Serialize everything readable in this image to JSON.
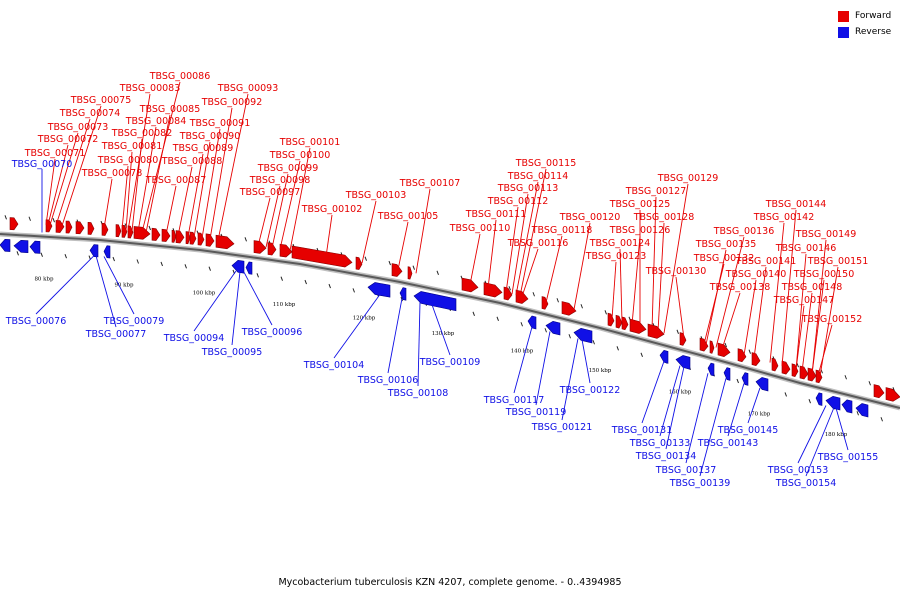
{
  "legend": {
    "forward_label": "Forward",
    "reverse_label": "Reverse",
    "forward_color": "#e60000",
    "reverse_color": "#1010e6"
  },
  "caption": "Mycobacterium tuberculosis KZN 4207, complete genome. - 0..4394985",
  "scale": [
    "80 kbp",
    "90 kbp",
    "100 kbp",
    "110 kbp",
    "120 kbp",
    "130 kbp",
    "140 kbp",
    "150 kbp",
    "160 kbp",
    "170 kbp",
    "180 kbp"
  ],
  "forward_labels": [
    "TBSG_00086",
    "TBSG_00083",
    "TBSG_00093",
    "TBSG_00075",
    "TBSG_00085",
    "TBSG_00092",
    "TBSG_00074",
    "TBSG_00084",
    "TBSG_00091",
    "TBSG_00073",
    "TBSG_00082",
    "TBSG_00090",
    "TBSG_00072",
    "TBSG_00081",
    "TBSG_00089",
    "TBSG_00101",
    "TBSG_00071",
    "TBSG_00080",
    "TBSG_00088",
    "TBSG_00100",
    "TBSG_00078",
    "TBSG_00099",
    "TBSG_00087",
    "TBSG_00098",
    "TBSG_00097",
    "TBSG_00102",
    "TBSG_00103",
    "TBSG_00107",
    "TBSG_00105",
    "TBSG_00115",
    "TBSG_00114",
    "TBSG_00113",
    "TBSG_00112",
    "TBSG_00111",
    "TBSG_00110",
    "TBSG_00120",
    "TBSG_00118",
    "TBSG_00116",
    "TBSG_00129",
    "TBSG_00127",
    "TBSG_00125",
    "TBSG_00128",
    "TBSG_00126",
    "TBSG_00124",
    "TBSG_00123",
    "TBSG_00130",
    "TBSG_00144",
    "TBSG_00142",
    "TBSG_00136",
    "TBSG_00135",
    "TBSG_00149",
    "TBSG_00146",
    "TBSG_00132",
    "TBSG_00141",
    "TBSG_00151",
    "TBSG_00140",
    "TBSG_00150",
    "TBSG_00138",
    "TBSG_00148",
    "TBSG_00147",
    "TBSG_00152"
  ],
  "reverse_labels": [
    "TBSG_00070",
    "TBSG_00076",
    "TBSG_00079",
    "TBSG_00077",
    "TBSG_00094",
    "TBSG_00096",
    "TBSG_00095",
    "TBSG_00104",
    "TBSG_00109",
    "TBSG_00106",
    "TBSG_00108",
    "TBSG_00117",
    "TBSG_00122",
    "TBSG_00119",
    "TBSG_00121",
    "TBSG_00131",
    "TBSG_00145",
    "TBSG_00133",
    "TBSG_00143",
    "TBSG_00134",
    "TBSG_00137",
    "TBSG_00139",
    "TBSG_00155",
    "TBSG_00153",
    "TBSG_00154"
  ]
}
